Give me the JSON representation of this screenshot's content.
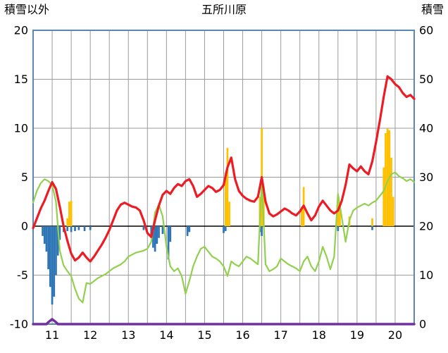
{
  "header": {
    "left_axis_title": "積雪以外",
    "title": "五所川原",
    "right_axis_title": "積雪"
  },
  "chart_data": {
    "type": "line+bar",
    "title": "五所川原",
    "x_axis": {
      "min": 11,
      "max": 21,
      "grid_step": 0.5,
      "label_positions": [
        11.5,
        12.5,
        13.5,
        14.5,
        15.5,
        16.5,
        17.5,
        18.5,
        19.5,
        20.5
      ],
      "labels": [
        "11",
        "12",
        "13",
        "14",
        "15",
        "16",
        "17",
        "18",
        "19",
        "20"
      ]
    },
    "left_axis": {
      "title": "積雪以外",
      "min": -10,
      "max": 20,
      "tick_values": [
        20,
        15,
        10,
        5,
        0,
        -5,
        -10
      ],
      "tick_labels": [
        "20",
        "15",
        "10",
        "5",
        "0",
        "-5",
        "-10"
      ]
    },
    "right_axis": {
      "title": "積雪",
      "min": 0,
      "max": 60,
      "tick_values": [
        60,
        50,
        40,
        30,
        20,
        10,
        0
      ],
      "tick_labels": [
        "60",
        "50",
        "40",
        "30",
        "20",
        "10",
        "0"
      ]
    },
    "style": {
      "frame_color": "#5b87b5",
      "grid_color": "#9b9b9b",
      "zero_line_color": "#000000",
      "text_color": "#000000",
      "background": "#ffffff"
    },
    "x_start": 11.0,
    "x_step": 0.1,
    "series": [
      {
        "name": "blue-bars",
        "type": "bar",
        "axis": "left",
        "color": "#2e75b6",
        "bar_width_days": 0.05,
        "points": [
          [
            11.25,
            -1.0
          ],
          [
            11.3,
            -1.8
          ],
          [
            11.35,
            -2.6
          ],
          [
            11.4,
            -4.4
          ],
          [
            11.45,
            -6.2
          ],
          [
            11.5,
            -8.0
          ],
          [
            11.55,
            -7.2
          ],
          [
            11.6,
            -5.0
          ],
          [
            11.65,
            -3.0
          ],
          [
            11.7,
            -1.4
          ],
          [
            11.8,
            -0.6
          ],
          [
            11.9,
            -0.5
          ],
          [
            12.0,
            -0.6
          ],
          [
            12.1,
            -0.5
          ],
          [
            12.2,
            -0.4
          ],
          [
            12.35,
            -0.5
          ],
          [
            12.5,
            -0.4
          ],
          [
            13.9,
            -0.4
          ],
          [
            14.1,
            -1.2
          ],
          [
            14.15,
            -2.2
          ],
          [
            14.2,
            -2.6
          ],
          [
            14.25,
            -1.8
          ],
          [
            14.3,
            -1.2
          ],
          [
            14.4,
            -0.8
          ],
          [
            14.55,
            -3.4
          ],
          [
            14.6,
            -1.6
          ],
          [
            15.05,
            -1.0
          ],
          [
            15.1,
            -0.6
          ],
          [
            16.0,
            -0.7
          ],
          [
            16.05,
            -0.5
          ],
          [
            16.95,
            -0.6
          ],
          [
            17.0,
            -1.0
          ],
          [
            19.0,
            -0.5
          ],
          [
            19.9,
            -0.4
          ]
        ]
      },
      {
        "name": "orange-bars",
        "type": "bar",
        "axis": "left",
        "color": "#ffc000",
        "bar_width_days": 0.05,
        "points": [
          [
            11.9,
            0.8
          ],
          [
            11.95,
            2.5
          ],
          [
            12.0,
            2.6
          ],
          [
            16.05,
            5.5
          ],
          [
            16.1,
            8.0
          ],
          [
            16.15,
            2.5
          ],
          [
            16.95,
            3.0
          ],
          [
            17.0,
            10.0
          ],
          [
            17.05,
            4.0
          ],
          [
            18.05,
            2.0
          ],
          [
            18.1,
            4.0
          ],
          [
            19.0,
            3.1
          ],
          [
            19.05,
            2.1
          ],
          [
            19.3,
            1.0
          ],
          [
            19.9,
            0.8
          ],
          [
            20.2,
            6.0
          ],
          [
            20.25,
            9.5
          ],
          [
            20.3,
            10.0
          ],
          [
            20.35,
            9.8
          ],
          [
            20.4,
            7.0
          ],
          [
            20.45,
            3.0
          ]
        ]
      },
      {
        "name": "green-line",
        "type": "line",
        "axis": "left",
        "color": "#92d050",
        "stroke_width": 2.2,
        "values": [
          2.4,
          3.6,
          4.4,
          4.8,
          4.6,
          4.2,
          2.5,
          -2.5,
          -4.0,
          -4.6,
          -5.1,
          -6.4,
          -7.4,
          -7.8,
          -5.8,
          -5.9,
          -5.6,
          -5.3,
          -5.1,
          -4.9,
          -4.6,
          -4.3,
          -4.1,
          -3.9,
          -3.6,
          -3.1,
          -2.9,
          -2.7,
          -2.6,
          -2.5,
          -2.3,
          -1.6,
          1.4,
          2.2,
          1.0,
          -2.1,
          -4.1,
          -4.6,
          -4.3,
          -5.1,
          -6.9,
          -5.6,
          -4.1,
          -3.1,
          -2.3,
          -2.1,
          -2.6,
          -3.1,
          -3.3,
          -3.6,
          -4.1,
          -5.1,
          -3.6,
          -3.9,
          -4.1,
          -3.6,
          -3.1,
          -3.3,
          -3.6,
          -3.9,
          4.6,
          -3.9,
          -4.6,
          -4.4,
          -4.1,
          -3.3,
          -3.6,
          -3.9,
          -4.1,
          -4.3,
          -4.6,
          -3.6,
          -3.1,
          -4.1,
          -4.6,
          -3.6,
          -2.1,
          -3.1,
          -4.4,
          -3.1,
          3.3,
          0.9,
          -1.6,
          0.6,
          1.6,
          1.9,
          2.1,
          2.3,
          2.1,
          2.4,
          2.6,
          3.1,
          3.6,
          4.6,
          5.3,
          5.5,
          5.1,
          4.9,
          4.6,
          4.8,
          4.5
        ]
      },
      {
        "name": "red-line",
        "type": "line",
        "axis": "left",
        "color": "#ed1c24",
        "stroke_width": 3.2,
        "values": [
          -0.2,
          0.8,
          1.8,
          2.6,
          3.6,
          4.5,
          3.8,
          2.0,
          0.0,
          -1.5,
          -2.8,
          -3.5,
          -3.2,
          -2.7,
          -3.2,
          -3.6,
          -3.1,
          -2.5,
          -1.9,
          -1.2,
          -0.4,
          0.6,
          1.6,
          2.2,
          2.4,
          2.2,
          2.0,
          1.9,
          1.6,
          0.6,
          -0.7,
          -1.1,
          0.6,
          2.1,
          3.2,
          3.6,
          3.3,
          3.9,
          4.3,
          4.1,
          4.6,
          4.8,
          4.1,
          3.0,
          3.3,
          3.7,
          4.1,
          3.9,
          3.5,
          3.7,
          4.2,
          6.0,
          7.0,
          4.8,
          3.6,
          3.1,
          2.8,
          2.6,
          2.5,
          3.0,
          5.0,
          2.5,
          1.3,
          1.0,
          1.2,
          1.5,
          1.8,
          1.6,
          1.3,
          1.1,
          1.5,
          2.1,
          1.3,
          0.6,
          1.1,
          2.0,
          2.6,
          2.1,
          1.6,
          1.3,
          1.6,
          2.6,
          4.2,
          6.3,
          5.9,
          5.6,
          6.1,
          5.6,
          5.3,
          6.6,
          8.6,
          10.8,
          13.2,
          15.3,
          15.0,
          14.5,
          14.2,
          13.6,
          13.2,
          13.4,
          13.0
        ]
      },
      {
        "name": "purple-line",
        "type": "line",
        "axis": "right",
        "color": "#7030a0",
        "stroke_width": 3.5,
        "points": [
          [
            11.0,
            0
          ],
          [
            11.35,
            0
          ],
          [
            11.4,
            0.4
          ],
          [
            11.5,
            1.0
          ],
          [
            11.6,
            0.4
          ],
          [
            11.65,
            0
          ],
          [
            21.0,
            0
          ]
        ]
      }
    ]
  }
}
